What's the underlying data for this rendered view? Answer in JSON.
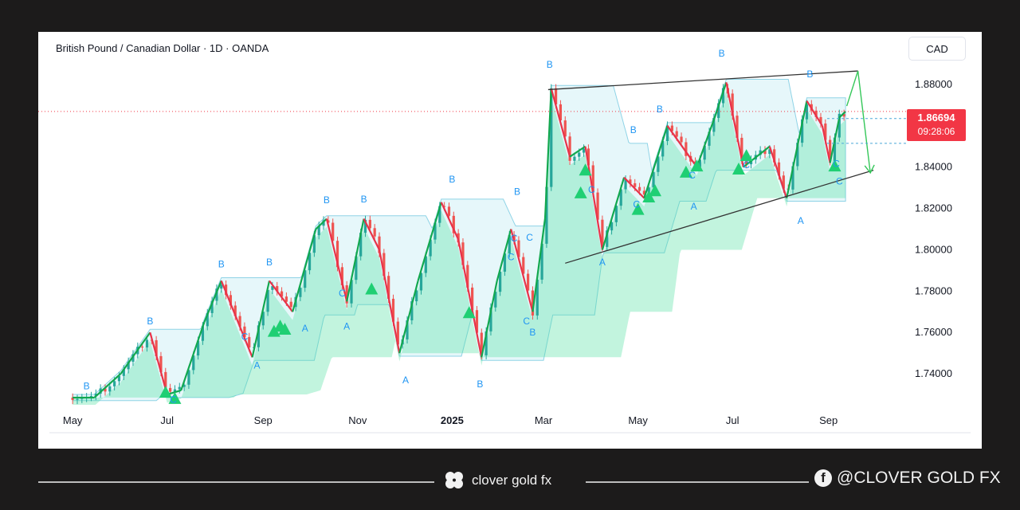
{
  "chart_data": {
    "type": "candlestick",
    "title": "British Pound / Canadian Dollar · 1D · OANDA",
    "currency": "CAD",
    "last_price": "1.86694",
    "countdown": "09:28:06",
    "ylim": [
      1.725,
      1.89
    ],
    "y_ticks": [
      "1.88000",
      "1.86000",
      "1.84000",
      "1.82000",
      "1.80000",
      "1.78000",
      "1.76000",
      "1.74000"
    ],
    "x_ticks": [
      "May",
      "Jul",
      "Sep",
      "Nov",
      "2025",
      "Mar",
      "May",
      "Jul",
      "Sep"
    ],
    "price_path": [
      [
        "2024-05-01",
        1.7285
      ],
      [
        "2024-05-15",
        1.7285
      ],
      [
        "2024-06-01",
        1.74
      ],
      [
        "2024-06-20",
        1.76
      ],
      [
        "2024-07-01",
        1.73
      ],
      [
        "2024-07-10",
        1.732
      ],
      [
        "2024-07-25",
        1.765
      ],
      [
        "2024-08-05",
        1.785
      ],
      [
        "2024-08-25",
        1.748
      ],
      [
        "2024-09-05",
        1.785
      ],
      [
        "2024-09-20",
        1.77
      ],
      [
        "2024-10-05",
        1.81
      ],
      [
        "2024-10-12",
        1.815
      ],
      [
        "2024-10-25",
        1.775
      ],
      [
        "2024-11-05",
        1.815
      ],
      [
        "2024-11-15",
        1.8
      ],
      [
        "2024-11-28",
        1.75
      ],
      [
        "2024-12-10",
        1.785
      ],
      [
        "2024-12-25",
        1.823
      ],
      [
        "2025-01-05",
        1.805
      ],
      [
        "2025-01-20",
        1.748
      ],
      [
        "2025-01-30",
        1.785
      ],
      [
        "2025-02-08",
        1.81
      ],
      [
        "2025-02-22",
        1.77
      ],
      [
        "2025-03-02",
        1.815
      ],
      [
        "2025-03-06",
        1.878
      ],
      [
        "2025-03-18",
        1.845
      ],
      [
        "2025-03-28",
        1.85
      ],
      [
        "2025-04-08",
        1.8
      ],
      [
        "2025-04-22",
        1.835
      ],
      [
        "2025-05-05",
        1.825
      ],
      [
        "2025-05-20",
        1.86
      ],
      [
        "2025-06-08",
        1.84
      ],
      [
        "2025-06-20",
        1.865
      ],
      [
        "2025-06-27",
        1.881
      ],
      [
        "2025-07-08",
        1.84
      ],
      [
        "2025-07-25",
        1.85
      ],
      [
        "2025-08-05",
        1.825
      ],
      [
        "2025-08-18",
        1.872
      ],
      [
        "2025-08-28",
        1.86
      ],
      [
        "2025-09-02",
        1.842
      ],
      [
        "2025-09-08",
        1.864
      ],
      [
        "2025-09-12",
        1.8669
      ]
    ],
    "wave_labels": [
      {
        "label": "B",
        "date": "2024-05-10",
        "price": 1.7325,
        "color": "#2196f3"
      },
      {
        "label": "B",
        "date": "2024-06-20",
        "price": 1.764,
        "color": "#2196f3"
      },
      {
        "label": "C",
        "date": "2024-07-05",
        "price": 1.726,
        "color": "#2196f3"
      },
      {
        "label": "B",
        "date": "2024-08-05",
        "price": 1.7915,
        "color": "#2196f3"
      },
      {
        "label": "A",
        "date": "2024-08-28",
        "price": 1.7425,
        "color": "#2196f3"
      },
      {
        "label": "C",
        "date": "2024-08-20",
        "price": 1.7565,
        "color": "#2196f3"
      },
      {
        "label": "B",
        "date": "2024-09-05",
        "price": 1.7925,
        "color": "#2196f3"
      },
      {
        "label": "A",
        "date": "2024-09-28",
        "price": 1.7605,
        "color": "#2196f3"
      },
      {
        "label": "B",
        "date": "2024-10-12",
        "price": 1.8225,
        "color": "#2196f3"
      },
      {
        "label": "C",
        "date": "2024-10-22",
        "price": 1.7775,
        "color": "#2196f3"
      },
      {
        "label": "A",
        "date": "2024-10-25",
        "price": 1.7615,
        "color": "#2196f3"
      },
      {
        "label": "B",
        "date": "2024-11-05",
        "price": 1.823,
        "color": "#2196f3"
      },
      {
        "label": "A",
        "date": "2024-12-02",
        "price": 1.7355,
        "color": "#2196f3"
      },
      {
        "label": "B",
        "date": "2025-01-01",
        "price": 1.8325,
        "color": "#2196f3"
      },
      {
        "label": "B",
        "date": "2025-01-19",
        "price": 1.7335,
        "color": "#2196f3"
      },
      {
        "label": "C",
        "date": "2025-02-10",
        "price": 1.804,
        "color": "#2196f3"
      },
      {
        "label": "C",
        "date": "2025-02-08",
        "price": 1.795,
        "color": "#2196f3"
      },
      {
        "label": "B",
        "date": "2025-02-12",
        "price": 1.8265,
        "color": "#2196f3"
      },
      {
        "label": "C",
        "date": "2025-02-20",
        "price": 1.8045,
        "color": "#2196f3"
      },
      {
        "label": "C",
        "date": "2025-02-18",
        "price": 1.764,
        "color": "#2196f3"
      },
      {
        "label": "B",
        "date": "2025-02-22",
        "price": 1.7585,
        "color": "#2196f3"
      },
      {
        "label": "B",
        "date": "2025-03-05",
        "price": 1.888,
        "color": "#2196f3"
      },
      {
        "label": "C",
        "date": "2025-04-01",
        "price": 1.8275,
        "color": "#2196f3"
      },
      {
        "label": "A",
        "date": "2025-04-08",
        "price": 1.7925,
        "color": "#2196f3"
      },
      {
        "label": "B",
        "date": "2025-04-28",
        "price": 1.8565,
        "color": "#2196f3"
      },
      {
        "label": "C",
        "date": "2025-04-30",
        "price": 1.8205,
        "color": "#2196f3"
      },
      {
        "label": "B",
        "date": "2025-05-15",
        "price": 1.8665,
        "color": "#2196f3"
      },
      {
        "label": "C",
        "date": "2025-06-05",
        "price": 1.8345,
        "color": "#2196f3"
      },
      {
        "label": "A",
        "date": "2025-06-06",
        "price": 1.8195,
        "color": "#2196f3"
      },
      {
        "label": "B",
        "date": "2025-06-24",
        "price": 1.8935,
        "color": "#2196f3"
      },
      {
        "label": "C",
        "date": "2025-07-10",
        "price": 1.8395,
        "color": "#2196f3"
      },
      {
        "label": "A",
        "date": "2025-08-14",
        "price": 1.8125,
        "color": "#2196f3"
      },
      {
        "label": "B",
        "date": "2025-08-20",
        "price": 1.8835,
        "color": "#2196f3"
      },
      {
        "label": "C",
        "date": "2025-09-06",
        "price": 1.84,
        "color": "#2196f3"
      },
      {
        "label": "C",
        "date": "2025-09-08",
        "price": 1.8315,
        "color": "#2196f3"
      }
    ],
    "buy_signals": [
      [
        "2024-06-30",
        1.7315
      ],
      [
        "2024-07-06",
        1.7285
      ],
      [
        "2024-09-08",
        1.761
      ],
      [
        "2024-09-12",
        1.7635
      ],
      [
        "2024-09-15",
        1.762
      ],
      [
        "2024-11-10",
        1.7815
      ],
      [
        "2025-01-12",
        1.77
      ],
      [
        "2025-03-28",
        1.839
      ],
      [
        "2025-03-25",
        1.828
      ],
      [
        "2025-05-01",
        1.82
      ],
      [
        "2025-05-08",
        1.826
      ],
      [
        "2025-05-12",
        1.829
      ],
      [
        "2025-06-01",
        1.838
      ],
      [
        "2025-06-08",
        1.841
      ],
      [
        "2025-07-05",
        1.8395
      ],
      [
        "2025-07-10",
        1.846
      ],
      [
        "2025-09-05",
        1.841
      ]
    ],
    "trendlines": {
      "upper": [
        [
          "2025-03-04",
          1.8775
        ],
        [
          "2025-09-20",
          1.8865
        ]
      ],
      "lower": [
        [
          "2025-03-15",
          1.7935
        ],
        [
          "2025-09-30",
          1.8385
        ]
      ],
      "projection": [
        [
          "2025-09-20",
          1.8865
        ],
        [
          "2025-09-28",
          1.8372
        ]
      ]
    },
    "grid": false,
    "colors": {
      "up": "#26a69a",
      "down": "#ef5350",
      "wave_up": "#12a84f",
      "wave_down": "#e8334a",
      "cloud": "#4fe0a0",
      "band": "#b8e8f2",
      "price_tag": "#f23645",
      "label": "#2196f3",
      "trendline": "#333333",
      "projection": "#34c759"
    }
  },
  "footer": {
    "brand": "clover gold fx",
    "social": "@CLOVER GOLD FX",
    "icons": [
      "clover-icon",
      "facebook-icon"
    ]
  }
}
